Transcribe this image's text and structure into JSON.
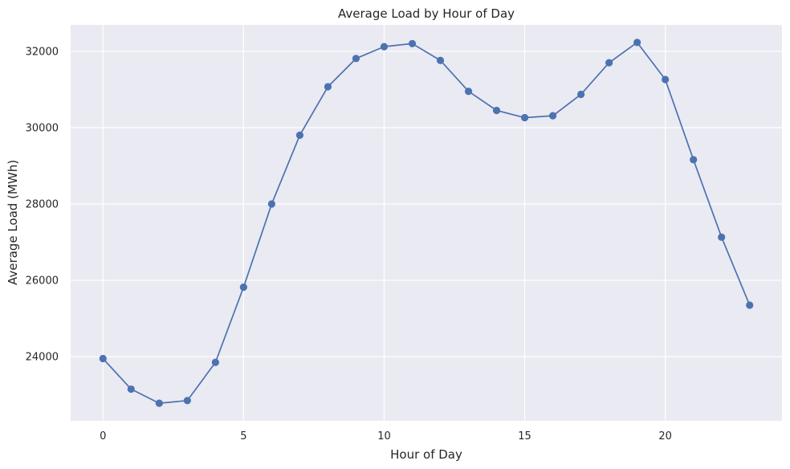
{
  "chart_data": {
    "type": "line",
    "title": "Average Load by Hour of Day",
    "xlabel": "Hour of Day",
    "ylabel": "Average Load (MWh)",
    "x": [
      0,
      1,
      2,
      3,
      4,
      5,
      6,
      7,
      8,
      9,
      10,
      11,
      12,
      13,
      14,
      15,
      16,
      17,
      18,
      19,
      20,
      21,
      22,
      23
    ],
    "series": [
      {
        "values": [
          23950,
          23150,
          22780,
          22850,
          23850,
          25820,
          28000,
          29800,
          31070,
          31810,
          32120,
          32200,
          31760,
          30950,
          30450,
          30260,
          30310,
          30870,
          31700,
          32230,
          31260,
          29160,
          27130,
          25350
        ]
      }
    ],
    "xlim": [
      -1.15,
      24.15
    ],
    "ylim": [
      22320,
      32690
    ],
    "xticks": [
      0,
      5,
      10,
      15,
      20
    ],
    "yticks": [
      24000,
      26000,
      28000,
      30000,
      32000
    ],
    "grid": true,
    "legend": "none",
    "colors": {
      "line": "#4c72b0",
      "plot_background": "#eaeaf2",
      "grid": "#ffffff",
      "text": "#262626"
    }
  }
}
